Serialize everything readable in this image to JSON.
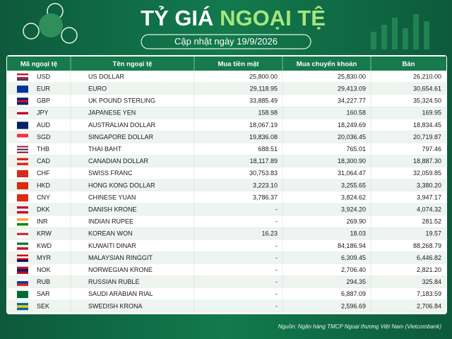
{
  "header": {
    "title_part1": "TỶ GIÁ",
    "title_part2": "NGOẠI TỆ",
    "date_label": "Cập nhật ngày 19/9/2026"
  },
  "table": {
    "columns": [
      "Mã ngoại tệ",
      "Tên ngoại tệ",
      "Mua tiền mặt",
      "Mua chuyển khoản",
      "Bán"
    ],
    "rows": [
      [
        "USD",
        "US DOLLAR",
        "25,800.00",
        "25,830.00",
        "26,210.00"
      ],
      [
        "EUR",
        "EURO",
        "29,118.95",
        "29,413.09",
        "30,654.61"
      ],
      [
        "GBP",
        "UK POUND STERLING",
        "33,885.49",
        "34,227.77",
        "35,324.50"
      ],
      [
        "JPY",
        "JAPANESE YEN",
        "158.98",
        "160.58",
        "169.95"
      ],
      [
        "AUD",
        "AUSTRALIAN DOLLAR",
        "18,067.19",
        "18,249.69",
        "18,834.45"
      ],
      [
        "SGD",
        "SINGAPORE DOLLAR",
        "19,836.08",
        "20,036.45",
        "20,719.87"
      ],
      [
        "THB",
        "THAI BAHT",
        "688.51",
        "765.01",
        "797.46"
      ],
      [
        "CAD",
        "CANADIAN DOLLAR",
        "18,117.89",
        "18,300.90",
        "18,887.30"
      ],
      [
        "CHF",
        "SWISS FRANC",
        "30,753.83",
        "31,064.47",
        "32,059.85"
      ],
      [
        "HKD",
        "HONG KONG DOLLAR",
        "3,223.10",
        "3,255.65",
        "3,380.20"
      ],
      [
        "CNY",
        "CHINESE YUAN",
        "3,786.37",
        "3,824.62",
        "3,947.17"
      ],
      [
        "DKK",
        "DANISH KRONE",
        "-",
        "3,924.20",
        "4,074.32"
      ],
      [
        "INR",
        "INDIAN RUPEE",
        "-",
        "269.90",
        "281.52"
      ],
      [
        "KRW",
        "KOREAN WON",
        "16.23",
        "18.03",
        "19.57"
      ],
      [
        "KWD",
        "KUWAITI DINAR",
        "-",
        "84,186.94",
        "88,268.79"
      ],
      [
        "MYR",
        "MALAYSIAN RINGGIT",
        "-",
        "6,309.45",
        "6,446.82"
      ],
      [
        "NOK",
        "NORWEGIAN KRONE",
        "-",
        "2,706.40",
        "2,821.20"
      ],
      [
        "RUB",
        "RUSSIAN RUBLE",
        "-",
        "294.35",
        "325.84"
      ],
      [
        "SAR",
        "SAUDI ARABIAN RIAL",
        "-",
        "6,887.09",
        "7,183.59"
      ],
      [
        "SEK",
        "SWEDISH KRONA",
        "-",
        "2,596.69",
        "2,706.84"
      ]
    ]
  },
  "footer": {
    "source": "Nguồn: Ngân hàng TMCP Ngoại thương Việt Nam (Vietcombank)"
  }
}
